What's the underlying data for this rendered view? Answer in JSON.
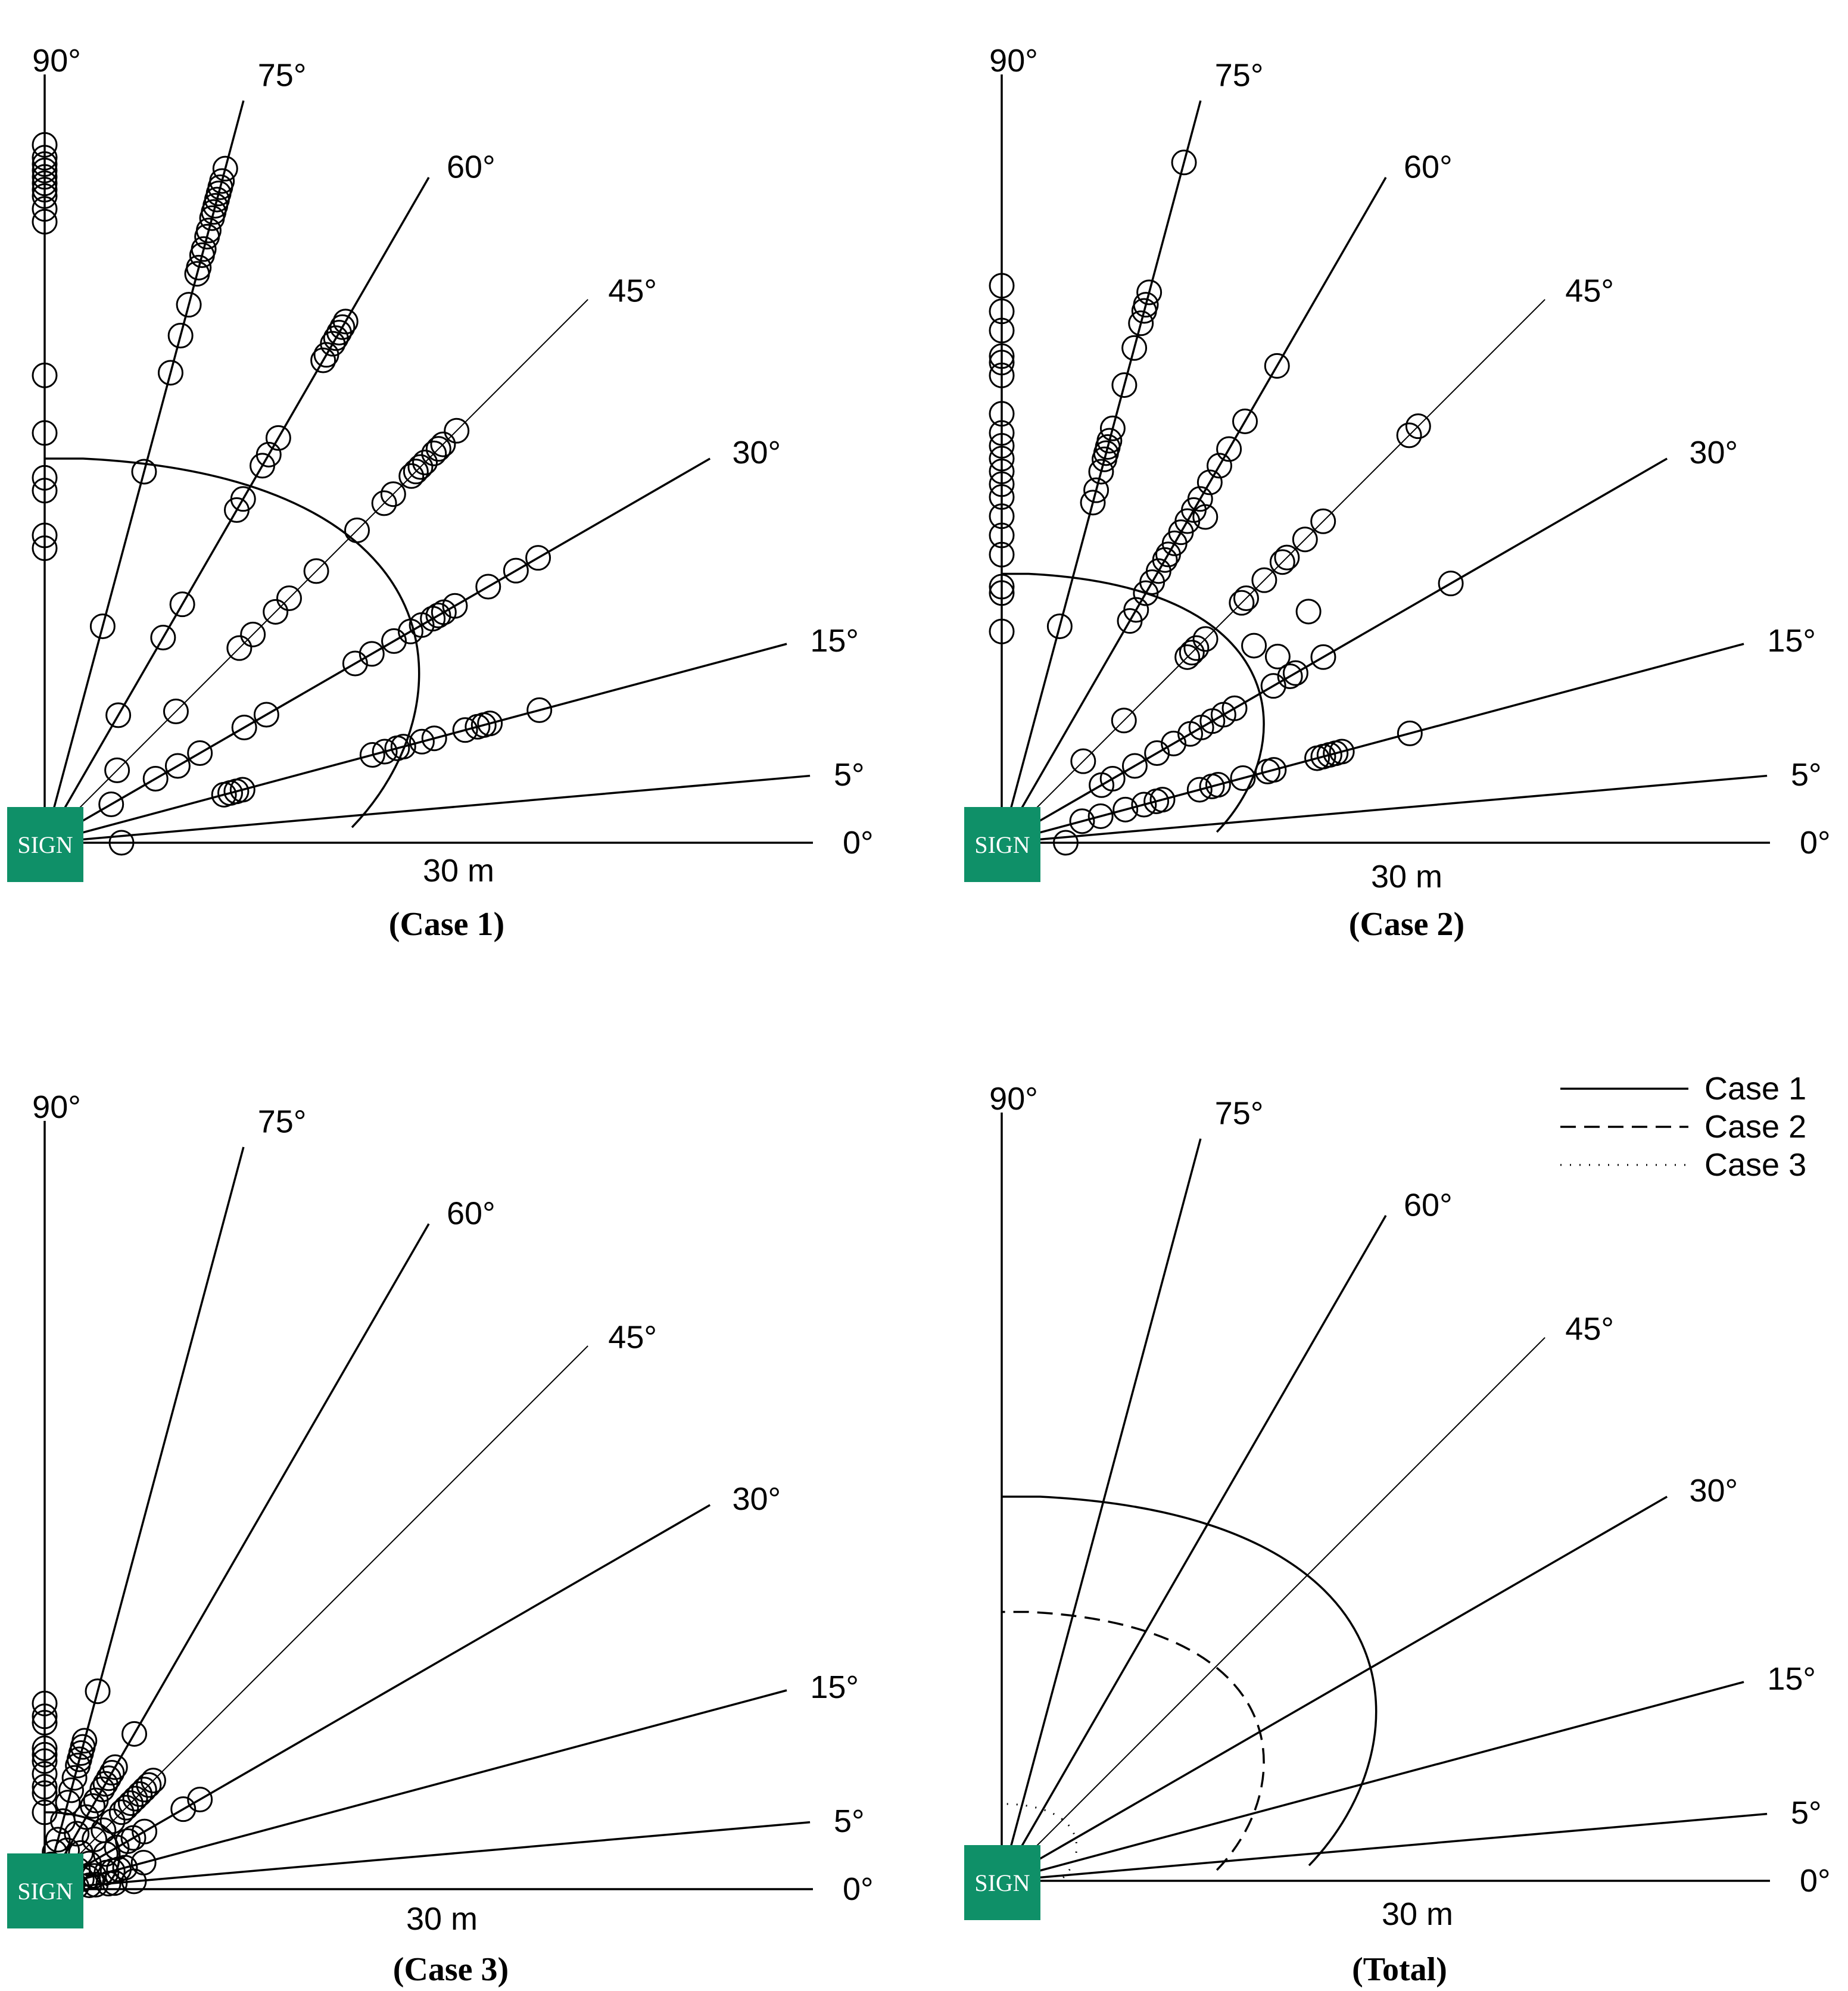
{
  "colors": {
    "sign": "#0f9068",
    "ink": "#000000"
  },
  "chart_data": [
    {
      "type": "scatter",
      "title": "(Case 1)",
      "sign_label": "SIGN",
      "scale_label": "30 m",
      "scale_length_m": 30,
      "ray_angles_deg": [
        0,
        5,
        15,
        30,
        45,
        60,
        75,
        90
      ],
      "ray_labels": [
        "0°",
        "5°",
        "15°",
        "30°",
        "45°",
        "60°",
        "75°",
        "90°"
      ],
      "boundary_radius_m": 30,
      "boundary_style": "solid",
      "points_by_angle": [
        {
          "angle": 90,
          "distances_m": [
            23.0,
            24.0,
            27.5,
            28.5,
            32.0,
            36.5,
            48.5,
            49.5,
            50.5,
            51.0,
            51.5,
            52.0,
            52.5,
            53.0,
            53.5,
            54.5
          ]
        },
        {
          "angle": 75,
          "distances_m": [
            17.5,
            30.0,
            38.0,
            41.0,
            43.5,
            46.0,
            46.5,
            47.5,
            48.0,
            49.0,
            49.5,
            50.5,
            51.0,
            51.5,
            52.0,
            52.5,
            53.0,
            53.5,
            54.5
          ]
        },
        {
          "angle": 60,
          "distances_m": [
            11.5,
            18.5,
            21.5,
            30.0,
            31.0,
            34.0,
            35.0,
            36.5,
            43.5,
            44.0,
            45.0,
            45.5,
            46.0,
            46.5,
            47.0
          ]
        },
        {
          "angle": 45,
          "distances_m": [
            8.0,
            14.5,
            21.5,
            23.0,
            25.5,
            27.0,
            30.0,
            34.5,
            37.5,
            38.5,
            40.5,
            41.0,
            41.5,
            42.0,
            43.0,
            43.5,
            44.0,
            45.5
          ]
        },
        {
          "angle": 30,
          "distances_m": [
            6.0,
            10.0,
            12.0,
            14.0,
            18.0,
            20.0,
            28.0,
            29.5,
            31.5,
            33.0,
            34.0,
            35.0,
            35.5,
            36.0,
            37.0,
            40.0,
            42.5,
            44.5
          ]
        },
        {
          "angle": 15,
          "distances_m": [
            14.5,
            15.0,
            15.5,
            16.0,
            26.5,
            27.5,
            28.5,
            29.0,
            30.5,
            31.5,
            34.0,
            35.0,
            35.5,
            36.0,
            40.0
          ]
        },
        {
          "angle": 0,
          "distances_m": [
            6.0
          ]
        }
      ]
    },
    {
      "type": "scatter",
      "title": "(Case 2)",
      "sign_label": "SIGN",
      "scale_label": "30 m",
      "scale_length_m": 30,
      "ray_angles_deg": [
        0,
        5,
        15,
        30,
        45,
        60,
        75,
        90
      ],
      "ray_labels": [
        "0°",
        "5°",
        "15°",
        "30°",
        "45°",
        "60°",
        "75°",
        "90°"
      ],
      "boundary_radius_m": 21,
      "boundary_style": "solid",
      "points_by_angle": [
        {
          "angle": 90,
          "distances_m": [
            16.5,
            19.5,
            20.0,
            22.5,
            24.0,
            25.5,
            27.0,
            28.0,
            29.0,
            30.0,
            31.0,
            32.0,
            33.5,
            36.5,
            37.5,
            38.0,
            40.0,
            41.5,
            43.5
          ]
        },
        {
          "angle": 75,
          "distances_m": [
            17.5,
            27.5,
            28.5,
            30.0,
            31.0,
            31.5,
            32.0,
            32.5,
            33.5,
            37.0,
            40.0,
            42.0,
            43.0,
            43.5,
            44.5,
            55.0
          ]
        },
        {
          "angle": 60,
          "distances_m": [
            20.0,
            21.0,
            22.5,
            23.5,
            24.5,
            25.5,
            26.0,
            27.0,
            28.0,
            29.0,
            30.0,
            31.0,
            32.5,
            34.0,
            35.5,
            38.0,
            43.0
          ]
        },
        {
          "angle": 45,
          "distances_m": [
            9.0,
            13.5,
            20.5,
            21.0,
            21.5,
            22.5,
            26.5,
            27.0,
            29.0,
            31.0,
            31.5,
            33.5,
            35.5,
            45.0,
            46.0
          ]
        },
        {
          "angle": 30,
          "distances_m": [
            9.0,
            10.0,
            12.0,
            14.0,
            15.5,
            17.0,
            18.0,
            19.0,
            20.0,
            21.0,
            24.5,
            26.0,
            26.5,
            29.0,
            40.5
          ]
        },
        {
          "angle": 15,
          "distances_m": [
            6.5,
            8.0,
            10.0,
            11.5,
            12.5,
            13.0,
            16.0,
            17.0,
            17.5,
            19.5,
            21.5,
            22.0,
            25.5,
            26.0,
            26.5,
            27.0,
            27.5,
            33.0
          ]
        },
        {
          "angle": 0,
          "distances_m": [
            5.0
          ]
        },
        {
          "angle": 38,
          "distances_m": [
            25.0
          ]
        },
        {
          "angle": 34,
          "distances_m": [
            26.0
          ]
        },
        {
          "angle": 37,
          "distances_m": [
            30.0
          ]
        },
        {
          "angle": 58,
          "distances_m": [
            30.0
          ]
        }
      ]
    },
    {
      "type": "scatter",
      "title": "(Case 3)",
      "sign_label": "SIGN",
      "scale_label": "30 m",
      "scale_length_m": 30,
      "ray_angles_deg": [
        0,
        5,
        15,
        30,
        45,
        60,
        75,
        90
      ],
      "ray_labels": [
        "0°",
        "5°",
        "15°",
        "30°",
        "45°",
        "60°",
        "75°",
        "90°"
      ],
      "boundary_radius_m": 6,
      "boundary_style": "solid",
      "points_by_angle": [
        {
          "angle": 90,
          "distances_m": [
            6.0,
            7.5,
            8.0,
            9.0,
            10.0,
            10.5,
            11.0,
            13.0,
            13.5,
            14.5
          ]
        },
        {
          "angle": 75,
          "distances_m": [
            2.0,
            3.0,
            4.0,
            5.5,
            7.0,
            8.0,
            9.0,
            10.0,
            10.5,
            11.0,
            11.5,
            12.0,
            16.0
          ]
        },
        {
          "angle": 60,
          "distances_m": [
            2.0,
            3.5,
            5.0,
            6.5,
            7.5,
            8.0,
            9.0,
            9.5,
            10.0,
            10.5,
            11.0,
            14.0
          ]
        },
        {
          "angle": 45,
          "distances_m": [
            2.5,
            4.0,
            5.5,
            6.5,
            7.5,
            8.5,
            9.0,
            9.5,
            10.0,
            10.5,
            11.0,
            11.5,
            12.0
          ]
        },
        {
          "angle": 30,
          "distances_m": [
            2.0,
            3.0,
            4.0,
            5.5,
            6.5,
            7.5,
            8.0,
            9.0,
            12.5,
            14.0
          ]
        },
        {
          "angle": 15,
          "distances_m": [
            2.0,
            3.0,
            3.5,
            4.0,
            5.0,
            5.5,
            6.0,
            6.5,
            8.0
          ]
        },
        {
          "angle": 5,
          "distances_m": [
            2.5,
            3.5,
            4.0,
            5.0,
            5.5,
            7.0
          ]
        }
      ]
    },
    {
      "type": "line",
      "title": "(Total)",
      "sign_label": "SIGN",
      "scale_label": "30 m",
      "scale_length_m": 30,
      "ray_angles_deg": [
        0,
        5,
        15,
        30,
        45,
        60,
        75,
        90
      ],
      "ray_labels": [
        "0°",
        "5°",
        "15°",
        "30°",
        "45°",
        "60°",
        "75°",
        "90°"
      ],
      "series": [
        {
          "name": "Case 1",
          "style": "solid",
          "boundary_radius_m": 30
        },
        {
          "name": "Case 2",
          "style": "dashed",
          "boundary_radius_m": 21
        },
        {
          "name": "Case 3",
          "style": "dotted",
          "boundary_radius_m": 6
        }
      ],
      "legend": {
        "position": "top-right",
        "entries": [
          "Case 1",
          "Case 2",
          "Case 3"
        ]
      }
    }
  ]
}
